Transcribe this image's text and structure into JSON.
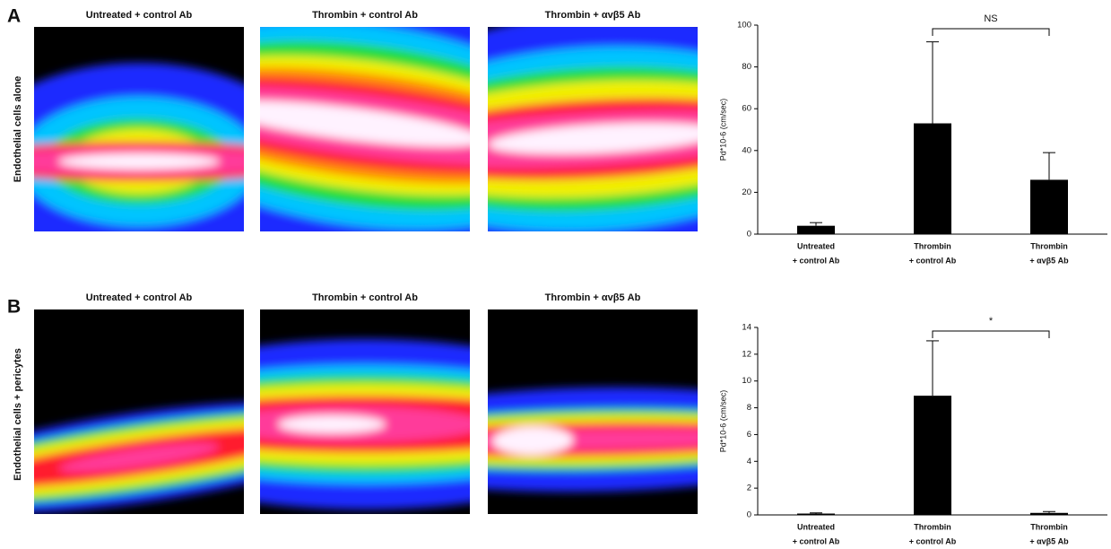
{
  "panels": [
    {
      "label": "A",
      "row_label": "Endothelial cells alone",
      "image_titles": [
        "Untreated + control Ab",
        "Thrombin + control Ab",
        "Thrombin + αvβ5 Ab"
      ]
    },
    {
      "label": "B",
      "row_label": "Endothelial cells  + pericytes",
      "image_titles": [
        "Untreated + control Ab",
        "Thrombin + control Ab",
        "Thrombin + αvβ5 Ab"
      ]
    }
  ],
  "chart_data": [
    {
      "type": "bar",
      "ylabel": "Pd*10-6 (cm/sec)",
      "categories": [
        [
          "Untreated",
          "+ control Ab"
        ],
        [
          "Thrombin",
          "+ control Ab"
        ],
        [
          "Thrombin",
          "+ αvβ5 Ab"
        ]
      ],
      "values": [
        4,
        53,
        26
      ],
      "errors": [
        1.5,
        39,
        13
      ],
      "color": "#000000",
      "ylim": [
        0,
        100
      ],
      "yticks": [
        0,
        20,
        40,
        60,
        80,
        100
      ],
      "annotation": "NS"
    },
    {
      "type": "bar",
      "ylabel": "Pd*10-6 (cm/sec)",
      "categories": [
        [
          "Untreated",
          "+ control Ab"
        ],
        [
          "Thrombin",
          "+ control Ab"
        ],
        [
          "Thrombin",
          "+ αvβ5 Ab"
        ]
      ],
      "values": [
        0.1,
        8.9,
        0.15
      ],
      "errors": [
        0.05,
        4.1,
        0.1
      ],
      "color": "#000000",
      "ylim": [
        0,
        14
      ],
      "yticks": [
        0,
        2,
        4,
        6,
        8,
        10,
        12,
        14
      ],
      "annotation": "*"
    }
  ]
}
